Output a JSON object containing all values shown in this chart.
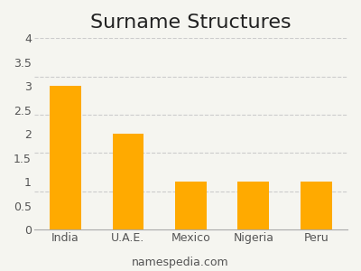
{
  "title": "Surname Structures",
  "categories": [
    "India",
    "U.A.E.",
    "Mexico",
    "Nigeria",
    "Peru"
  ],
  "values": [
    3,
    2,
    1,
    1,
    1
  ],
  "bar_color": "#FFAA00",
  "background_color": "#f5f5f0",
  "ylim": [
    0,
    4
  ],
  "yticks": [
    0,
    0.5,
    1.0,
    1.5,
    2.0,
    2.5,
    3.0,
    3.5,
    4.0
  ],
  "grid_positions": [
    0.8,
    1.6,
    2.4,
    3.2,
    4.0
  ],
  "grid_color": "#cccccc",
  "title_fontsize": 16,
  "tick_fontsize": 9,
  "footer_text": "namespedia.com",
  "footer_fontsize": 9,
  "footer_color": "#555555",
  "bar_width": 0.5
}
